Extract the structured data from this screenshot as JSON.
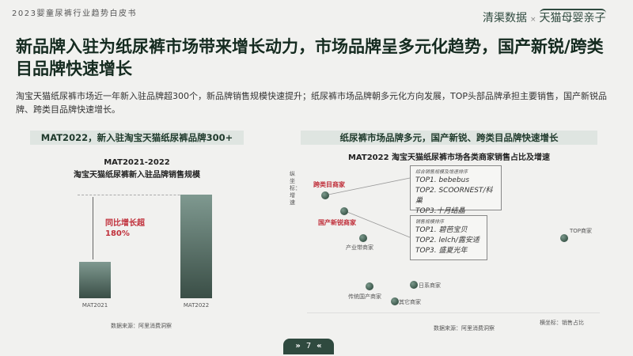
{
  "header": {
    "doc_title": "2023婴童尿裤行业趋势白皮书",
    "logo_left": "清渠数据",
    "logo_sep": "×",
    "logo_right": "天猫母婴亲子"
  },
  "headline": "新品牌入驻为纸尿裤市场带来增长动力，市场品牌呈多元化趋势，国产新锐/跨类目品牌快速增长",
  "summary": "淘宝天猫纸尿裤市场近一年新入驻品牌超300个，新品牌销售规模快速提升；纸尿裤市场品牌朝多元化方向发展，TOP头部品牌承担主要销售，国产新锐品牌、跨类目品牌快速增长。",
  "left": {
    "banner": "MAT2022，新入驻淘宝天猫纸尿裤品牌300+",
    "title1": "MAT2021-2022",
    "title2": "淘宝天猫纸尿裤新入驻品牌销售规模",
    "growth1": "同比增长超",
    "growth2": "180%",
    "bars": [
      {
        "label": "MAT2021"
      },
      {
        "label": "MAT2022"
      }
    ],
    "source": "数据来源：阿里消费洞察"
  },
  "right": {
    "banner": "纸尿裤市场品牌多元，国产新锐、跨类目品牌快速增长",
    "title": "MAT2022 淘宝天猫纸尿裤市场各类商家销售占比及增速",
    "ylabel": "纵坐标：增速",
    "xlabel": "横坐标：销售占比",
    "source": "数据来源：阿里消费洞察",
    "points": [
      {
        "label": "跨类目商家"
      },
      {
        "label": "国产新锐商家"
      },
      {
        "label": "产业带商家"
      },
      {
        "label": "TOP商家"
      },
      {
        "label": "传统国产商家"
      },
      {
        "label": "日系商家"
      },
      {
        "label": "其它商家"
      }
    ],
    "box1": {
      "heading": "综合销售规模及增速排序",
      "items": [
        "TOP1. bebebus",
        "TOP2. SCOORNEST/科巢",
        "TOP3.十月结晶"
      ]
    },
    "box2": {
      "heading": "销售规模排序",
      "items": [
        "TOP1. 碧芭宝贝",
        "TOP2. leIch/露安适",
        "TOP3. 盛夏光年"
      ]
    }
  },
  "footer": {
    "page": "7",
    "prev": "»",
    "next": "«"
  },
  "colors": {
    "accent": "#2f4a3f",
    "highlight": "#c0303b"
  }
}
